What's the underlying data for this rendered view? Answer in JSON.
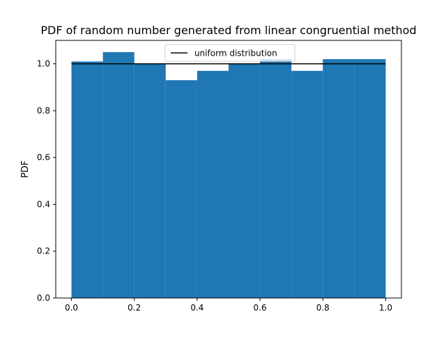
{
  "chart_data": {
    "type": "bar",
    "title": "PDF of random number generated from linear congruential method",
    "xlabel": "",
    "ylabel": "PDF",
    "bin_edges": [
      0.0,
      0.1,
      0.2,
      0.3,
      0.4,
      0.5,
      0.6,
      0.7,
      0.8,
      0.9,
      1.0
    ],
    "values": [
      1.01,
      1.05,
      1.0,
      0.93,
      0.97,
      1.0,
      1.02,
      0.97,
      1.02,
      1.02
    ],
    "bar_color": "#1f77b4",
    "series": [
      {
        "name": "uniform distribution",
        "type": "line",
        "color": "#000000",
        "x": [
          0.0,
          1.0
        ],
        "y": [
          1.0,
          1.0
        ]
      }
    ],
    "xlim": [
      -0.05,
      1.05
    ],
    "ylim": [
      0.0,
      1.1
    ],
    "xticks": [
      0.0,
      0.2,
      0.4,
      0.6,
      0.8,
      1.0
    ],
    "xtick_labels": [
      "0.0",
      "0.2",
      "0.4",
      "0.6",
      "0.8",
      "1.0"
    ],
    "yticks": [
      0.0,
      0.2,
      0.4,
      0.6,
      0.8,
      1.0
    ],
    "ytick_labels": [
      "0.0",
      "0.2",
      "0.4",
      "0.6",
      "0.8",
      "1.0"
    ],
    "legend": {
      "position": "upper center",
      "entries": [
        "uniform distribution"
      ]
    },
    "grid": false
  }
}
